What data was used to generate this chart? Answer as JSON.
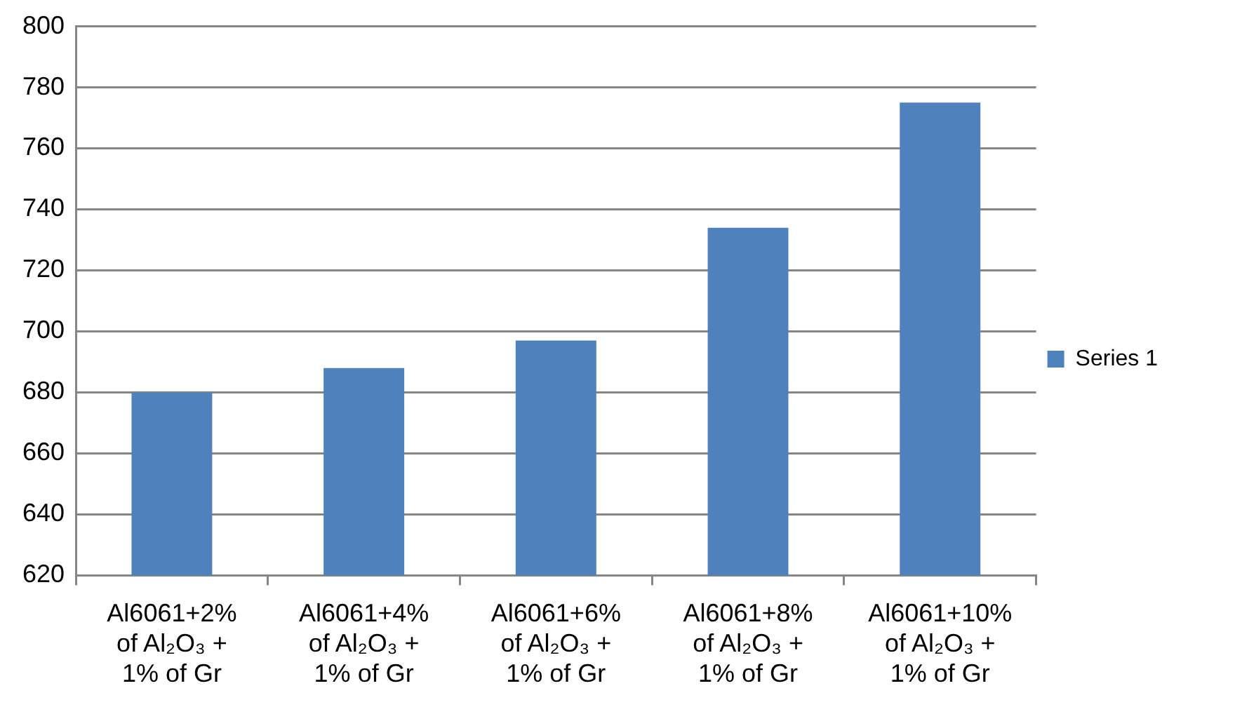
{
  "chart_data": {
    "type": "bar",
    "categories": [
      "Al6061+2%\nof Al₂O₃ +\n1% of Gr",
      "Al6061+4%\nof Al₂O₃ +\n1% of Gr",
      "Al6061+6%\nof Al₂O₃ +\n1% of Gr",
      "Al6061+8%\nof Al₂O₃ +\n1% of Gr",
      "Al6061+10%\nof Al₂O₃ +\n1% of Gr"
    ],
    "series": [
      {
        "name": "Series 1",
        "color": "#4f81bd",
        "values": [
          680,
          688,
          697,
          734,
          775
        ]
      }
    ],
    "ylim": [
      620,
      800
    ],
    "yticks": [
      620,
      640,
      660,
      680,
      700,
      720,
      740,
      760,
      780,
      800
    ],
    "grid": "y",
    "legend": "right"
  }
}
